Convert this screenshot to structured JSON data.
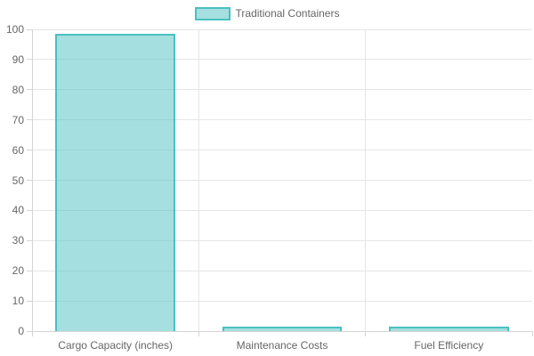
{
  "legend": {
    "label": "Traditional Containers"
  },
  "chart_data": {
    "type": "bar",
    "title": "",
    "xlabel": "",
    "ylabel": "",
    "categories": [
      "Cargo Capacity (inches)",
      "Maintenance Costs",
      "Fuel Efficiency"
    ],
    "series": [
      {
        "name": "Traditional Containers",
        "values": [
          98,
          1,
          1
        ]
      }
    ],
    "ylim": [
      0,
      100
    ],
    "yticks": [
      0,
      10,
      20,
      30,
      40,
      50,
      60,
      70,
      80,
      90,
      100
    ],
    "grid": true,
    "legend_position": "top-center",
    "style": {
      "bar_fill": "rgba(75,192,192,0.5)",
      "bar_border": "#4bc0c0",
      "grid_color": "#e6e6e6",
      "axis_color": "#d4d4d4",
      "text_color": "#666666",
      "background": "#ffffff"
    }
  }
}
